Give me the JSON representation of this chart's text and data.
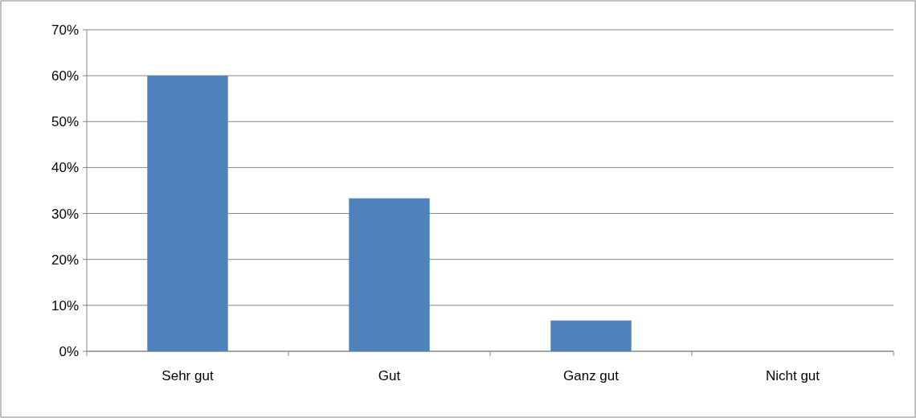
{
  "chart_data": {
    "type": "bar",
    "categories": [
      "Sehr gut",
      "Gut",
      "Ganz gut",
      "Nicht gut"
    ],
    "values": [
      60,
      33.3,
      6.7,
      0
    ],
    "color": "#4f81bd",
    "ylim": [
      0,
      70
    ],
    "yticks": [
      {
        "value": 0,
        "label": "0%"
      },
      {
        "value": 10,
        "label": "10%"
      },
      {
        "value": 20,
        "label": "20%"
      },
      {
        "value": 30,
        "label": "30%"
      },
      {
        "value": 40,
        "label": "40%"
      },
      {
        "value": 50,
        "label": "50%"
      },
      {
        "value": 60,
        "label": "60%"
      },
      {
        "value": 70,
        "label": "70%"
      }
    ],
    "grid": "y"
  }
}
